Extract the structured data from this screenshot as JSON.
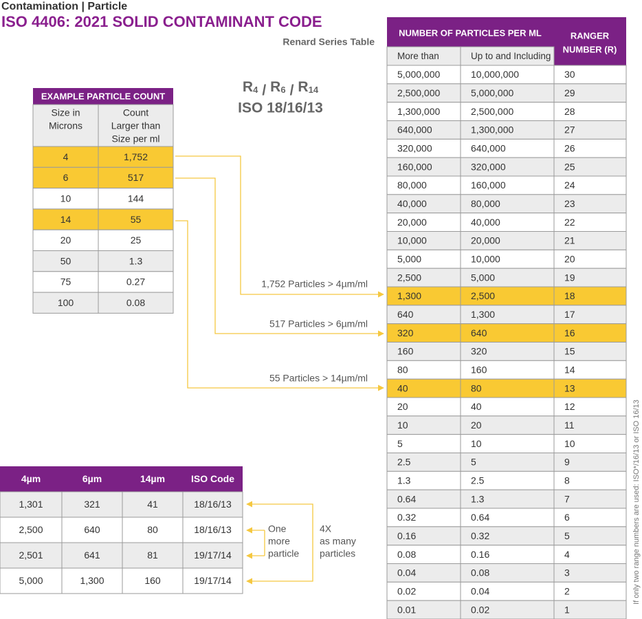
{
  "header": {
    "category": "Contamination | Particle",
    "title": "ISO 4406: 2021 SOLID CONTAMINANT CODE",
    "subtitle": "Renard Series Table"
  },
  "formula": {
    "terms": [
      {
        "base": "R",
        "sub": "4"
      },
      {
        "base": "R",
        "sub": "6"
      },
      {
        "base": "R",
        "sub": "14"
      }
    ],
    "separator": "/",
    "code": "ISO 18/16/13"
  },
  "example_table": {
    "title": "EXAMPLE PARTICLE COUNT",
    "columns": [
      [
        "Size in",
        "Microns"
      ],
      [
        "Count",
        "Larger than",
        "Size per ml"
      ]
    ],
    "rows": [
      [
        "4",
        "1,752"
      ],
      [
        "6",
        "517"
      ],
      [
        "10",
        "144"
      ],
      [
        "14",
        "55"
      ],
      [
        "20",
        "25"
      ],
      [
        "50",
        "1.3"
      ],
      [
        "75",
        "0.27"
      ],
      [
        "100",
        "0.08"
      ]
    ],
    "highlight_rows": [
      0,
      1,
      3
    ]
  },
  "annotations": [
    "1,752 Particles > 4µm/ml",
    "517 Particles > 6µm/ml",
    "55 Particles > 14µm/ml"
  ],
  "renard_table": {
    "group_header": "NUMBER OF PARTICLES PER ML",
    "columns": [
      "More than",
      "Up to and Including"
    ],
    "range_header": [
      "RANGER",
      "NUMBER (R)"
    ],
    "rows": [
      [
        "5,000,000",
        "10,000,000",
        "30"
      ],
      [
        "2,500,000",
        "5,000,000",
        "29"
      ],
      [
        "1,300,000",
        "2,500,000",
        "28"
      ],
      [
        "640,000",
        "1,300,000",
        "27"
      ],
      [
        "320,000",
        "640,000",
        "26"
      ],
      [
        "160,000",
        "320,000",
        "25"
      ],
      [
        "80,000",
        "160,000",
        "24"
      ],
      [
        "40,000",
        "80,000",
        "23"
      ],
      [
        "20,000",
        "40,000",
        "22"
      ],
      [
        "10,000",
        "20,000",
        "21"
      ],
      [
        "5,000",
        "10,000",
        "20"
      ],
      [
        "2,500",
        "5,000",
        "19"
      ],
      [
        "1,300",
        "2,500",
        "18"
      ],
      [
        "640",
        "1,300",
        "17"
      ],
      [
        "320",
        "640",
        "16"
      ],
      [
        "160",
        "320",
        "15"
      ],
      [
        "80",
        "160",
        "14"
      ],
      [
        "40",
        "80",
        "13"
      ],
      [
        "20",
        "40",
        "12"
      ],
      [
        "10",
        "20",
        "11"
      ],
      [
        "5",
        "10",
        "10"
      ],
      [
        "2.5",
        "5",
        "9"
      ],
      [
        "1.3",
        "2.5",
        "8"
      ],
      [
        "0.64",
        "1.3",
        "7"
      ],
      [
        "0.32",
        "0.64",
        "6"
      ],
      [
        "0.16",
        "0.32",
        "5"
      ],
      [
        "0.08",
        "0.16",
        "4"
      ],
      [
        "0.04",
        "0.08",
        "3"
      ],
      [
        "0.02",
        "0.04",
        "2"
      ],
      [
        "0.01",
        "0.02",
        "1"
      ]
    ],
    "highlight_rows": [
      12,
      14,
      17
    ]
  },
  "iso_table": {
    "columns": [
      "4µm",
      "6µm",
      "14µm",
      "ISO Code"
    ],
    "rows": [
      [
        "1,301",
        "321",
        "41",
        "18/16/13"
      ],
      [
        "2,500",
        "640",
        "80",
        "18/16/13"
      ],
      [
        "2,501",
        "641",
        "81",
        "19/17/14"
      ],
      [
        "5,000",
        "1,300",
        "160",
        "19/17/14"
      ]
    ]
  },
  "notes": {
    "one_more": [
      "One",
      "more",
      "particle"
    ],
    "four_x": [
      "4X",
      "as many",
      "particles"
    ]
  },
  "side_note": "If only two range numbers are used: ISO*/16/13 or ISO 16/13"
}
